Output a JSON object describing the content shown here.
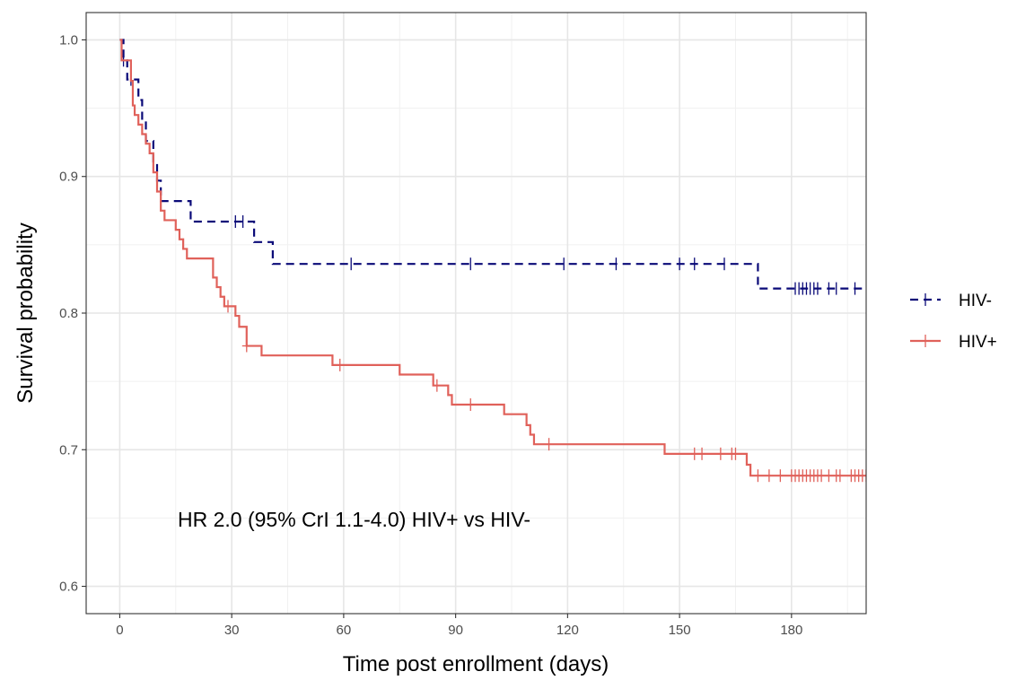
{
  "chart_data": {
    "type": "line",
    "subtype": "kaplan-meier step",
    "xlabel": "Time post enrollment (days)",
    "ylabel": "Survival probability",
    "xlim": [
      -9,
      200
    ],
    "ylim": [
      0.58,
      1.02
    ],
    "x_ticks": [
      0,
      30,
      60,
      90,
      120,
      150,
      180
    ],
    "y_ticks": [
      0.6,
      0.7,
      0.8,
      0.9,
      1.0
    ],
    "y_tick_labels": [
      "0.6",
      "0.7",
      "0.8",
      "0.9",
      "1.0"
    ],
    "grid": true,
    "legend_position": "right",
    "annotation": "HR 2.0 (95% CrI 1.1-4.0) HIV+ vs HIV-",
    "series": [
      {
        "name": "HIV-",
        "color": "#0a0a78",
        "line_style": "dashed",
        "steps": [
          [
            0,
            1.0
          ],
          [
            1,
            0.985
          ],
          [
            2,
            0.971
          ],
          [
            5,
            0.956
          ],
          [
            6,
            0.941
          ],
          [
            7,
            0.926
          ],
          [
            9,
            0.911
          ],
          [
            10,
            0.897
          ],
          [
            11,
            0.882
          ],
          [
            19,
            0.867
          ],
          [
            36,
            0.852
          ],
          [
            41,
            0.836
          ],
          [
            171,
            0.818
          ],
          [
            200,
            0.818
          ]
        ],
        "censor_times": [
          1,
          3,
          31,
          33,
          62,
          94,
          119,
          133,
          150,
          154,
          162,
          181,
          182,
          183,
          184,
          185,
          186,
          187,
          190,
          192,
          197
        ]
      },
      {
        "name": "HIV+",
        "color": "#e0615a",
        "line_style": "solid",
        "steps": [
          [
            0,
            1.0
          ],
          [
            0.5,
            0.985
          ],
          [
            3,
            0.97
          ],
          [
            3.5,
            0.952
          ],
          [
            4,
            0.945
          ],
          [
            5,
            0.938
          ],
          [
            6,
            0.931
          ],
          [
            7,
            0.924
          ],
          [
            8,
            0.917
          ],
          [
            9,
            0.903
          ],
          [
            10,
            0.889
          ],
          [
            11,
            0.875
          ],
          [
            12,
            0.868
          ],
          [
            15,
            0.861
          ],
          [
            16,
            0.854
          ],
          [
            17,
            0.847
          ],
          [
            18,
            0.84
          ],
          [
            25,
            0.826
          ],
          [
            26,
            0.819
          ],
          [
            27,
            0.812
          ],
          [
            28,
            0.805
          ],
          [
            31,
            0.798
          ],
          [
            32,
            0.79
          ],
          [
            34,
            0.776
          ],
          [
            38,
            0.769
          ],
          [
            57,
            0.762
          ],
          [
            75,
            0.755
          ],
          [
            84,
            0.747
          ],
          [
            88,
            0.74
          ],
          [
            89,
            0.733
          ],
          [
            103,
            0.726
          ],
          [
            109,
            0.718
          ],
          [
            110,
            0.711
          ],
          [
            111,
            0.704
          ],
          [
            146,
            0.697
          ],
          [
            168,
            0.689
          ],
          [
            169,
            0.681
          ],
          [
            200,
            0.681
          ]
        ],
        "censor_times": [
          29,
          34,
          59,
          85,
          94,
          115,
          154,
          156,
          161,
          164,
          165,
          171,
          174,
          177,
          180,
          181,
          182,
          183,
          184,
          185,
          186,
          187,
          188,
          190,
          192,
          193,
          196,
          197,
          198,
          199,
          200
        ]
      }
    ]
  }
}
